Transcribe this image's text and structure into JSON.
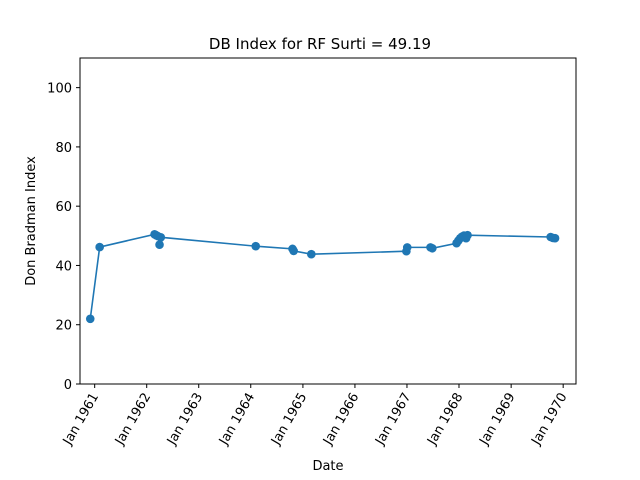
{
  "chart_data": {
    "type": "line",
    "title": "DB Index for RF Surti = 49.19",
    "xlabel": "Date",
    "ylabel": "Don Bradman Index",
    "ylim": [
      0,
      110
    ],
    "xlim": [
      "1960-09-20",
      "1970-04-01"
    ],
    "yticks": [
      0,
      20,
      40,
      60,
      80,
      100
    ],
    "xticks": [
      {
        "date": "1961-01-01",
        "label": "Jan 1961"
      },
      {
        "date": "1962-01-01",
        "label": "Jan 1962"
      },
      {
        "date": "1963-01-01",
        "label": "Jan 1963"
      },
      {
        "date": "1964-01-01",
        "label": "Jan 1964"
      },
      {
        "date": "1965-01-01",
        "label": "Jan 1965"
      },
      {
        "date": "1966-01-01",
        "label": "Jan 1966"
      },
      {
        "date": "1967-01-01",
        "label": "Jan 1967"
      },
      {
        "date": "1968-01-01",
        "label": "Jan 1968"
      },
      {
        "date": "1969-01-01",
        "label": "Jan 1969"
      },
      {
        "date": "1970-01-01",
        "label": "Jan 1970"
      }
    ],
    "grid": false,
    "color": "#1f77b4",
    "series": [
      {
        "points": [
          {
            "x": "1960-12-01",
            "y": 22.0
          },
          {
            "x": "1961-02-05",
            "y": 46.2
          },
          {
            "x": "1962-02-25",
            "y": 50.5
          },
          {
            "x": "1962-03-08",
            "y": 50.2
          },
          {
            "x": "1962-03-20",
            "y": 49.9
          },
          {
            "x": "1962-04-01",
            "y": 47.0
          },
          {
            "x": "1962-04-10",
            "y": 49.5
          },
          {
            "x": "1964-02-05",
            "y": 46.5
          },
          {
            "x": "1964-10-20",
            "y": 45.6
          },
          {
            "x": "1964-10-28",
            "y": 44.9
          },
          {
            "x": "1965-03-01",
            "y": 43.8
          },
          {
            "x": "1966-12-28",
            "y": 44.8
          },
          {
            "x": "1967-01-03",
            "y": 46.1
          },
          {
            "x": "1967-06-15",
            "y": 46.1
          },
          {
            "x": "1967-06-28",
            "y": 45.8
          },
          {
            "x": "1967-12-15",
            "y": 47.5
          },
          {
            "x": "1967-12-28",
            "y": 48.4
          },
          {
            "x": "1968-01-10",
            "y": 49.2
          },
          {
            "x": "1968-01-22",
            "y": 49.7
          },
          {
            "x": "1968-02-05",
            "y": 50.1
          },
          {
            "x": "1968-02-20",
            "y": 49.2
          },
          {
            "x": "1968-03-01",
            "y": 50.2
          },
          {
            "x": "1969-10-05",
            "y": 49.6
          },
          {
            "x": "1969-10-20",
            "y": 49.3
          },
          {
            "x": "1969-11-05",
            "y": 49.2
          }
        ]
      }
    ]
  }
}
